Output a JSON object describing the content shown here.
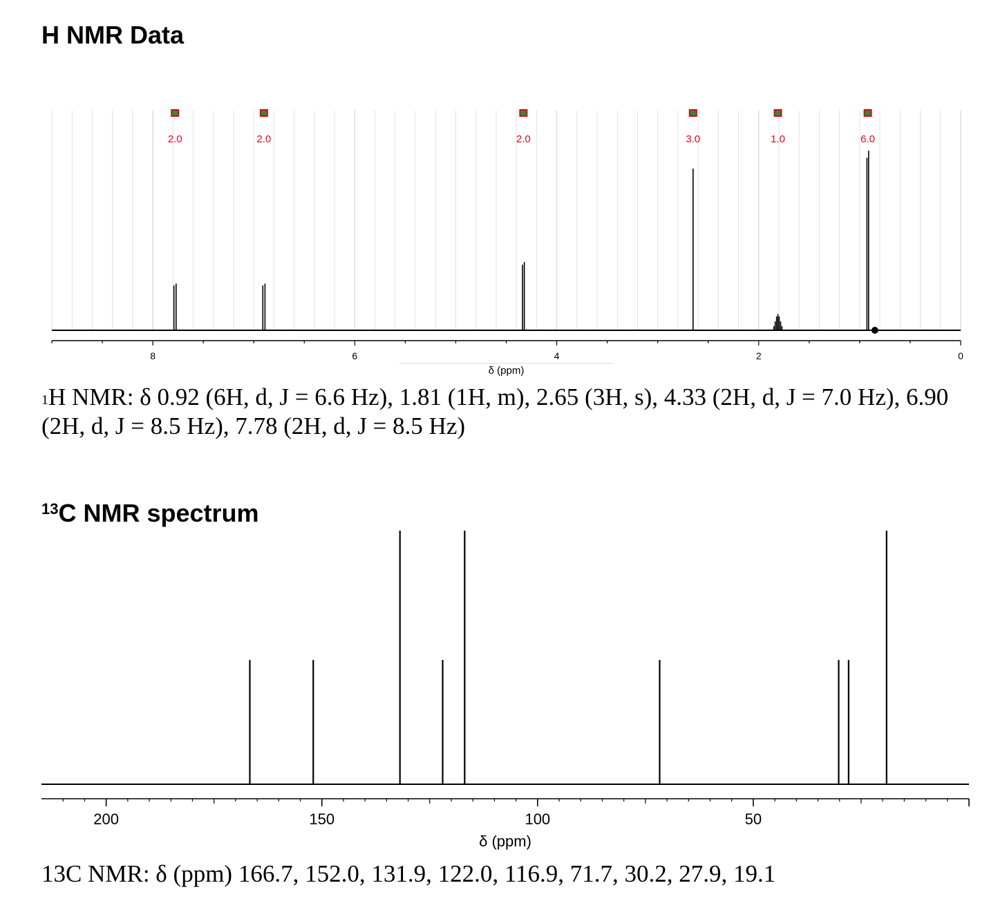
{
  "h_nmr": {
    "heading": "H NMR Data",
    "caption_prefix": "H NMR: δ 0.92 (6H, d, J = 6.6 Hz), 1.81 (1H, m), 2.65 (3H, s), 4.33 (2H, d, J = 7.0 Hz), 6.90 (2H, d, J = 8.5 Hz), 7.78 (2H, d, J = 8.5 Hz)",
    "caption_sup": "1"
  },
  "c_nmr": {
    "heading_sup": "13",
    "heading_main": "C NMR spectrum",
    "caption": "13C NMR: δ (ppm) 166.7, 152.0, 131.9, 122.0, 116.9, 71.7, 30.2, 27.9, 19.1"
  },
  "colors": {
    "integral_label": "#e8001c",
    "integral_mark_fill": "#2e8b2e",
    "integral_mark_border": "#e8001c",
    "grid": "#d9d9d9",
    "trace": "#000000"
  },
  "chart_data": [
    {
      "type": "line",
      "title": "",
      "xlabel": "δ (ppm)",
      "ylabel": "",
      "xlim": [
        9.0,
        0.0
      ],
      "x_reversed": true,
      "grid": true,
      "x_ticks": [
        8,
        6,
        4,
        2,
        0
      ],
      "peaks": [
        {
          "shift": 0.92,
          "multiplicity": "d",
          "J_Hz": 6.6,
          "rel_height": 1.0
        },
        {
          "shift": 1.81,
          "multiplicity": "m",
          "rel_height": 0.09
        },
        {
          "shift": 2.65,
          "multiplicity": "s",
          "rel_height": 0.9
        },
        {
          "shift": 4.33,
          "multiplicity": "d",
          "J_Hz": 7.0,
          "rel_height": 0.38
        },
        {
          "shift": 6.9,
          "multiplicity": "d",
          "J_Hz": 8.5,
          "rel_height": 0.26
        },
        {
          "shift": 7.78,
          "multiplicity": "d",
          "J_Hz": 8.5,
          "rel_height": 0.26
        }
      ],
      "integrals": [
        {
          "shift": 7.78,
          "label": "2.0"
        },
        {
          "shift": 6.9,
          "label": "2.0"
        },
        {
          "shift": 4.33,
          "label": "2.0"
        },
        {
          "shift": 2.65,
          "label": "3.0"
        },
        {
          "shift": 1.81,
          "label": "1.0"
        },
        {
          "shift": 0.92,
          "label": "6.0"
        }
      ]
    },
    {
      "type": "line",
      "title": "",
      "xlabel": "δ (ppm)",
      "ylabel": "",
      "xlim": [
        215,
        0
      ],
      "x_reversed": true,
      "grid": false,
      "x_ticks": [
        200,
        150,
        100,
        50
      ],
      "peaks": [
        {
          "shift": 166.7,
          "rel_height": 0.49
        },
        {
          "shift": 152.0,
          "rel_height": 0.49
        },
        {
          "shift": 131.9,
          "rel_height": 1.0
        },
        {
          "shift": 122.0,
          "rel_height": 0.49
        },
        {
          "shift": 116.9,
          "rel_height": 1.0
        },
        {
          "shift": 71.7,
          "rel_height": 0.49
        },
        {
          "shift": 30.2,
          "rel_height": 0.49
        },
        {
          "shift": 27.9,
          "rel_height": 0.49
        },
        {
          "shift": 19.1,
          "rel_height": 1.0
        }
      ]
    }
  ]
}
